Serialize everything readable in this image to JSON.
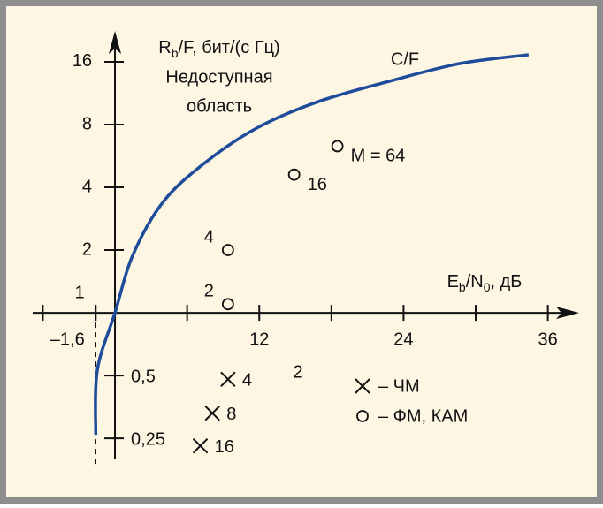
{
  "chart_data": {
    "type": "scatter",
    "y_label_parts": [
      "R",
      "b",
      "/F, бит/(с Гц)"
    ],
    "x_label_parts": [
      "E",
      "b",
      "/N",
      "0",
      ", дБ"
    ],
    "annotations": [
      "Недоступная",
      "область",
      "2"
    ],
    "xlim": [
      -6.84,
      38.6
    ],
    "ylim": [
      0.2,
      22.5
    ],
    "log_y": true,
    "xticks": [
      {
        "value": -1.6,
        "label": "–1,6"
      },
      12,
      24,
      36
    ],
    "xminor_ticks": [
      -6,
      6,
      18,
      30
    ],
    "yticks": [
      {
        "value": 0.25,
        "label": "0,25"
      },
      {
        "value": 0.5,
        "label": "0,5"
      },
      1,
      2,
      4,
      8,
      16
    ],
    "series": [
      {
        "name": "C/F",
        "kind": "line",
        "color": "#1f4b9b",
        "x": [
          -1.6,
          -1.47,
          0,
          1.5,
          4,
          7.4,
          11.8,
          16.9,
          22.8,
          28.7,
          34.4
        ],
        "values": [
          0.26,
          0.53,
          1,
          1.9,
          3.4,
          5.2,
          7.7,
          10.3,
          12.9,
          15.7,
          17.3
        ]
      },
      {
        "name": "– ФМ, КАМ",
        "kind": "circle",
        "color": "#111111",
        "x": [
          9.4,
          9.4,
          14.9,
          18.5
        ],
        "values": [
          1.1,
          2,
          4.6,
          6.3
        ],
        "point_labels": [
          "2",
          "4",
          "16",
          "M = 64"
        ]
      },
      {
        "name": "– ЧМ",
        "kind": "cross",
        "color": "#111111",
        "x": [
          9.4,
          8.1,
          7.1
        ],
        "values": [
          0.48,
          0.33,
          0.23
        ],
        "point_labels": [
          "4",
          "8",
          "16"
        ]
      }
    ]
  }
}
